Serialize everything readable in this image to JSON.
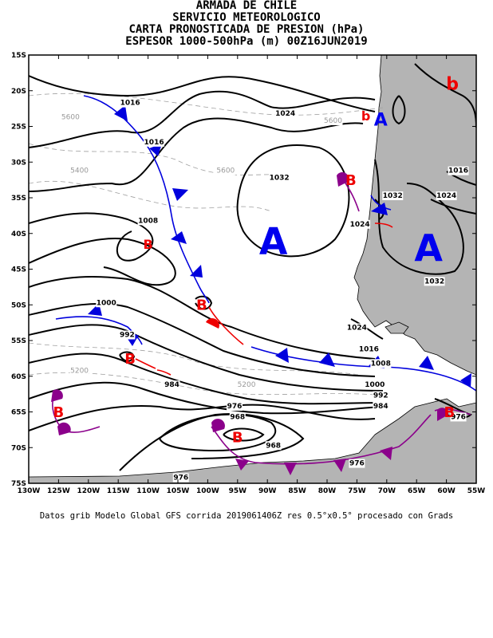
{
  "header": {
    "line1": "ARMADA DE CHILE",
    "line2": "SERVICIO METEOROLOGICO",
    "line3": "CARTA PRONOSTICADA DE PRESION (hPa)",
    "line4": "ESPESOR 1000-500hPa (m) 00Z16JUN2019"
  },
  "footer": "Datos grib Modelo Global GFS corrida 2019061406Z res 0.5°x0.5° procesado con Grads",
  "axes": {
    "lat_labels": [
      "15S",
      "20S",
      "25S",
      "30S",
      "35S",
      "40S",
      "45S",
      "50S",
      "55S",
      "60S",
      "65S",
      "70S",
      "75S"
    ],
    "lon_labels": [
      "130W",
      "125W",
      "120W",
      "115W",
      "110W",
      "105W",
      "100W",
      "95W",
      "90W",
      "85W",
      "80W",
      "75W",
      "70W",
      "65W",
      "60W",
      "55W"
    ],
    "lon_range": [
      -130,
      -55
    ],
    "lat_range": [
      -75,
      -15
    ]
  },
  "colors": {
    "land": "#b4b4b4",
    "isobar": "#000000",
    "thickness": "#a0a0a0",
    "cold_front": "#0000dd",
    "warm_front": "#ee0000",
    "occluded_front": "#8b008b",
    "high_center": "#0000ee",
    "low_center": "#ee0000"
  },
  "centers": [
    {
      "label": "A",
      "lon": -89,
      "lat": -41,
      "size": 46
    },
    {
      "label": "A",
      "lon": -63,
      "lat": -42,
      "size": 46
    },
    {
      "label": "A",
      "lon": -71,
      "lat": -24,
      "size": 22
    },
    {
      "label": "b",
      "lon": -59,
      "lat": -19,
      "size": 22
    },
    {
      "label": "b",
      "lon": -73.5,
      "lat": -23.5,
      "size": 16
    },
    {
      "label": "B",
      "lon": -76,
      "lat": -32.5,
      "size": 18
    },
    {
      "label": "B",
      "lon": -110,
      "lat": -41.5,
      "size": 16
    },
    {
      "label": "B",
      "lon": -101,
      "lat": -50,
      "size": 18
    },
    {
      "label": "B",
      "lon": -113,
      "lat": -57.5,
      "size": 18
    },
    {
      "label": "B",
      "lon": -125,
      "lat": -65,
      "size": 18
    },
    {
      "label": "B",
      "lon": -95,
      "lat": -68.5,
      "size": 18
    },
    {
      "label": "B",
      "lon": -59.5,
      "lat": -65,
      "size": 18
    }
  ],
  "isobar_labels": [
    {
      "text": "1016",
      "lon": -113,
      "lat": -22
    },
    {
      "text": "1016",
      "lon": -109,
      "lat": -27.5
    },
    {
      "text": "1008",
      "lon": -110,
      "lat": -38.5
    },
    {
      "text": "1000",
      "lon": -117,
      "lat": -50
    },
    {
      "text": "992",
      "lon": -113.5,
      "lat": -54.5
    },
    {
      "text": "984",
      "lon": -106,
      "lat": -61.5
    },
    {
      "text": "976",
      "lon": -95.5,
      "lat": -64.5
    },
    {
      "text": "968",
      "lon": -95,
      "lat": -66
    },
    {
      "text": "968",
      "lon": -89,
      "lat": -70
    },
    {
      "text": "976",
      "lon": -104.5,
      "lat": -74.5
    },
    {
      "text": "1024",
      "lon": -87,
      "lat": -23.5
    },
    {
      "text": "1032",
      "lon": -88,
      "lat": -32.5
    },
    {
      "text": "1032",
      "lon": -69,
      "lat": -35
    },
    {
      "text": "1024",
      "lon": -74.5,
      "lat": -39
    },
    {
      "text": "1024",
      "lon": -75,
      "lat": -53.5
    },
    {
      "text": "1016",
      "lon": -73,
      "lat": -56.5
    },
    {
      "text": "1008",
      "lon": -71,
      "lat": -58.5
    },
    {
      "text": "1000",
      "lon": -72,
      "lat": -61.5
    },
    {
      "text": "992",
      "lon": -71,
      "lat": -63
    },
    {
      "text": "984",
      "lon": -71,
      "lat": -64.5
    },
    {
      "text": "976",
      "lon": -75,
      "lat": -72.5
    },
    {
      "text": "1016",
      "lon": -58,
      "lat": -31.5
    },
    {
      "text": "1024",
      "lon": -60,
      "lat": -35
    },
    {
      "text": "1032",
      "lon": -62,
      "lat": -47
    },
    {
      "text": "976",
      "lon": -58,
      "lat": -66
    }
  ],
  "thickness_labels": [
    {
      "text": "5600",
      "lon": -123,
      "lat": -24
    },
    {
      "text": "5600",
      "lon": -79,
      "lat": -24.5
    },
    {
      "text": "5600",
      "lon": -97,
      "lat": -31.5
    },
    {
      "text": "5400",
      "lon": -121.5,
      "lat": -31.5
    },
    {
      "text": "5200",
      "lon": -121.5,
      "lat": -59.5
    },
    {
      "text": "5200",
      "lon": -93.5,
      "lat": -61.5
    }
  ]
}
